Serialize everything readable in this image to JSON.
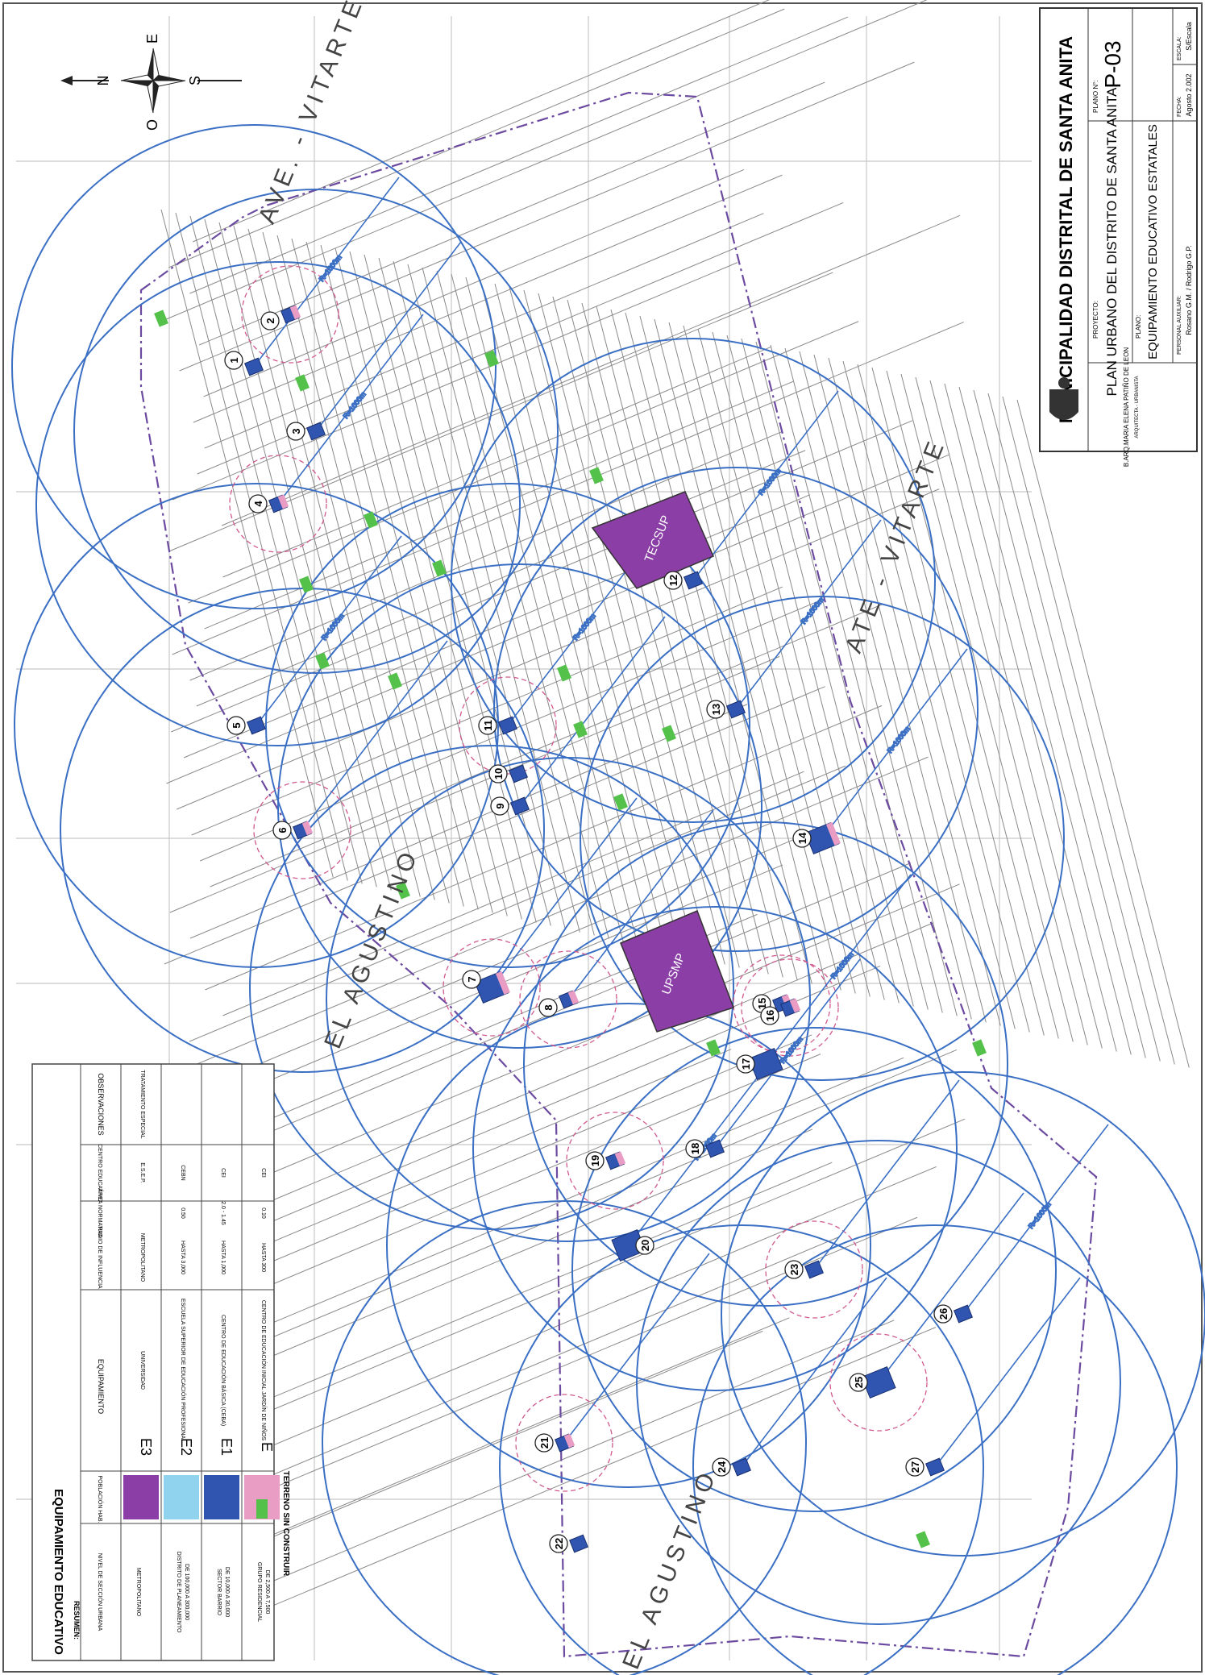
{
  "title_block": {
    "municipality": "MUNICIPALIDAD DISTRITAL DE SANTA ANITA",
    "project_label": "PROYECTO:",
    "project": "PLAN URBANO DEL DISTRITO DE SANTA ANITA",
    "plan_label": "PLANO:",
    "plan": "EQUIPAMIENTO EDUCATIVO ESTATALES",
    "plan_no_label": "PLANO N°:",
    "plan_no": "P-03",
    "author": "B.ARQ.MARIA ELENA PATIÑO DE LEON",
    "author_note": "ARQUITECTA - URBANISTA",
    "staff_label": "PERSONAL AUXILIAR:",
    "staff": "Rosano G.M. / Rodrigo G.P.",
    "date_label": "FECHA:",
    "date": "Agosto 2.002",
    "scale_label": "ESCALA:",
    "scale": "S/Escala"
  },
  "compass": {
    "n": "N",
    "s": "S",
    "e": "E",
    "o": "O"
  },
  "areas": {
    "top": "AVE. - VITARTE",
    "right": "ATE - VITARTE",
    "left": "EL AGUSTINO",
    "bottom": "EL AGUSTINO"
  },
  "campuses": [
    {
      "label": "TECSUP"
    },
    {
      "label": "UPSMP"
    }
  ],
  "schools": [
    "1",
    "2",
    "3",
    "4",
    "5",
    "6",
    "7",
    "8",
    "9",
    "10",
    "11",
    "12",
    "13",
    "14",
    "15",
    "16",
    "17",
    "18",
    "19",
    "20",
    "21",
    "22",
    "23",
    "24",
    "25",
    "26",
    "27"
  ],
  "radius_label": "R=1000m",
  "legend": {
    "title": "EQUIPAMIENTO EDUCATIVO",
    "resumen": "RESUMEN:",
    "headers": [
      "NIVEL DE SECCIÓN URBANA",
      "POBLACIÓN HAB.",
      "EQUIPAMIENTO",
      "RADIO DE INFLUENCIA",
      "ÁREA NORMATIVA",
      "CENTRO EDUCATIVO",
      "OBSERVACIONES"
    ],
    "rows": [
      {
        "nivel": "METROPOLITANO",
        "pob": "",
        "code": "E3",
        "name": "UNIVERSIDAD",
        "radio": "METROPOLITANO",
        "area": "",
        "tipo": "E.S.E.P.",
        "obs": "TRATAMIENTO ESPECIAL",
        "color": "#8b3fa6"
      },
      {
        "nivel": "DISTRITO DE PLANEAMIENTO",
        "pob": "DE 100,000 A 300,000",
        "code": "E2",
        "name": "ESCUELA SUPERIOR DE EDUCACIÓN PROFESIONAL",
        "radio": "HASTA 3,000",
        "area": "0.50",
        "tipo": "CEBN",
        "obs": "",
        "color": "#8fd3ee"
      },
      {
        "nivel": "SECTOR BARRIO",
        "pob": "DE 10,000 A 30,000",
        "code": "E1",
        "name": "CENTRO DE EDUCACIÓN BÁSICA (CEBA)",
        "radio": "HASTA 1,000",
        "area": "2.0 - 1.45",
        "tipo": "CEI",
        "obs": "",
        "color": "#2f55b0"
      },
      {
        "nivel": "GRUPO RESIDENCIAL",
        "pob": "DE 2,500 A 7,500",
        "code": "E",
        "name": "CENTRO DE EDUCACIÓN INICIAL JARDÍN DE NIÑOS",
        "radio": "HASTA 300",
        "area": "0.10",
        "tipo": "CEI",
        "obs": "",
        "color": "#e99cc4"
      }
    ],
    "vacant": "TERRENO SIN CONSTRUIR",
    "vacant_color": "#54c24a"
  },
  "colors": {
    "circle": "#3a6fc4",
    "pink_circle": "#d05a8f",
    "streets": "#8a8a8a",
    "boundary": "#6b4aa0"
  }
}
